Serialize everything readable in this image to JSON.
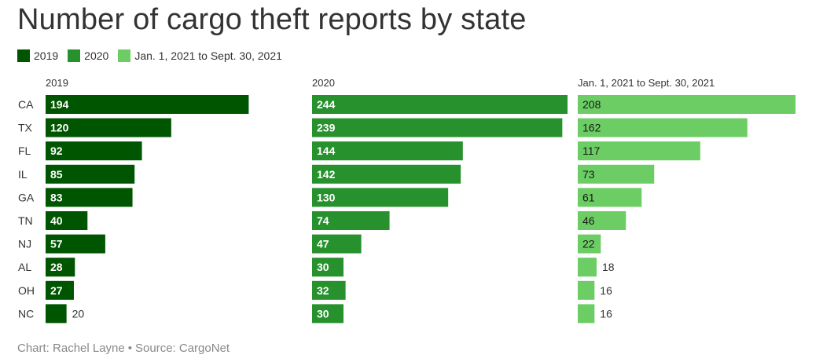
{
  "title": "Number of cargo theft reports by state",
  "legend": [
    {
      "label": "2019",
      "color": "#005500"
    },
    {
      "label": "2020",
      "color": "#26912d"
    },
    {
      "label": "Jan. 1, 2021 to Sept. 30, 2021",
      "color": "#6ccd64"
    }
  ],
  "source": {
    "credit": "Chart: Rachel Layne",
    "separator": "•",
    "source": "Source: CargoNet"
  },
  "chart_data": {
    "type": "bar",
    "orientation": "horizontal",
    "categories": [
      "CA",
      "TX",
      "FL",
      "IL",
      "GA",
      "TN",
      "NJ",
      "AL",
      "OH",
      "NC"
    ],
    "series": [
      {
        "name": "2019",
        "color": "#005500",
        "values": [
          194,
          120,
          92,
          85,
          83,
          40,
          57,
          28,
          27,
          20
        ]
      },
      {
        "name": "2020",
        "color": "#26912d",
        "values": [
          244,
          239,
          144,
          142,
          130,
          74,
          47,
          30,
          32,
          30
        ]
      },
      {
        "name": "Jan. 1, 2021 to Sept. 30, 2021",
        "color": "#6ccd64",
        "values": [
          208,
          162,
          117,
          73,
          61,
          46,
          22,
          18,
          16,
          16
        ]
      }
    ],
    "xlim": [
      0,
      244
    ],
    "title": "Number of cargo theft reports by state"
  }
}
